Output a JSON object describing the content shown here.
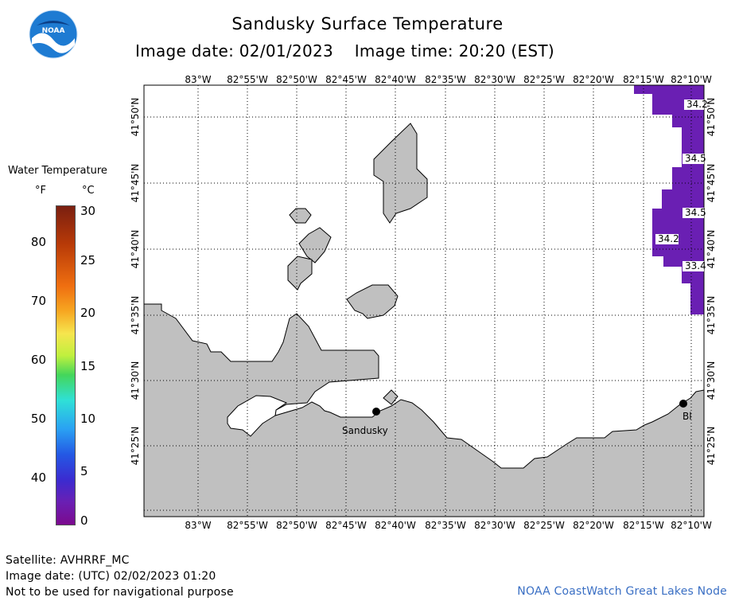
{
  "header": {
    "title": "Sandusky Surface Temperature",
    "image_date_label": "Image date: 02/01/2023",
    "image_time_label": "Image time: 20:20 (EST)"
  },
  "legend": {
    "title": "Water Temperature",
    "fahrenheit_unit": "°F",
    "celsius_unit": "°C",
    "fahrenheit_ticks": [
      "80",
      "70",
      "60",
      "50",
      "40"
    ],
    "celsius_ticks": [
      "30",
      "25",
      "20",
      "15",
      "10",
      "5",
      "0"
    ],
    "colormap": [
      "#7a1f10",
      "#ef6e10",
      "#f6e54e",
      "#44d65a",
      "#2fe0d7",
      "#2458e4",
      "#7b0a8e"
    ]
  },
  "map": {
    "longitude_ticks": [
      "83°W",
      "82°55'W",
      "82°50'W",
      "82°45'W",
      "82°40'W",
      "82°35'W",
      "82°30'W",
      "82°25'W",
      "82°20'W",
      "82°15'W",
      "82°10'W"
    ],
    "latitude_ticks": [
      "41°50'N",
      "41°45'N",
      "41°40'N",
      "41°35'N",
      "41°30'N",
      "41°25'N"
    ],
    "city_labels": {
      "sandusky": "Sandusky",
      "blue_partial": "Bl"
    },
    "temperature_labels": [
      "34.2",
      "34.5",
      "34.5",
      "34.2",
      "33.4"
    ],
    "land_color": "#c0c0c0",
    "water_color": "#ffffff",
    "data_color": "#6a1fb3"
  },
  "footer": {
    "satellite": "Satellite: AVHRRF_MC",
    "image_date_utc": "Image date: (UTC) 02/02/2023  01:20",
    "disclaimer": "Not to be used for navigational purpose",
    "credit": "NOAA CoastWatch Great Lakes Node"
  }
}
